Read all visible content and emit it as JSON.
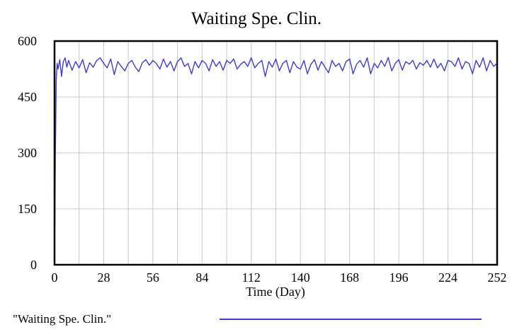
{
  "chart_data": {
    "type": "line",
    "title": "Waiting Spe. Clin.",
    "xlabel": "Time (Day)",
    "ylabel": "",
    "xlim": [
      0,
      252
    ],
    "ylim": [
      0,
      600
    ],
    "x_ticks": [
      0,
      28,
      56,
      84,
      112,
      140,
      168,
      196,
      224,
      252
    ],
    "y_ticks": [
      0,
      150,
      300,
      450,
      600
    ],
    "x_tick_labels": [
      "0",
      "28",
      "56",
      "84",
      "112",
      "140",
      "168",
      "196",
      "224",
      "252"
    ],
    "y_tick_labels": [
      "0",
      "150",
      "300",
      "450",
      "600"
    ],
    "grid": true,
    "legend_position": "bottom",
    "series": [
      {
        "name": "\"Waiting Spe. Clin.\"",
        "color": "#3b3bd4",
        "x": [
          0,
          0.5,
          1,
          1.5,
          2,
          3,
          4,
          5,
          6,
          7,
          8,
          10,
          12,
          14,
          16,
          18,
          20,
          22,
          24,
          26,
          28,
          30,
          32,
          34,
          36,
          38,
          40,
          42,
          44,
          46,
          48,
          50,
          52,
          54,
          56,
          58,
          60,
          62,
          64,
          66,
          68,
          70,
          72,
          74,
          76,
          78,
          80,
          82,
          84,
          86,
          88,
          90,
          92,
          94,
          96,
          98,
          100,
          102,
          104,
          106,
          108,
          110,
          112,
          114,
          116,
          118,
          120,
          122,
          124,
          126,
          128,
          130,
          132,
          134,
          136,
          138,
          140,
          142,
          144,
          146,
          148,
          150,
          152,
          154,
          156,
          158,
          160,
          162,
          164,
          166,
          168,
          170,
          172,
          174,
          176,
          178,
          180,
          182,
          184,
          186,
          188,
          190,
          192,
          194,
          196,
          198,
          200,
          202,
          204,
          206,
          208,
          210,
          212,
          214,
          216,
          218,
          220,
          222,
          224,
          226,
          228,
          230,
          232,
          234,
          236,
          238,
          240,
          242,
          244,
          246,
          248,
          250,
          252
        ],
        "values": [
          0,
          300,
          500,
          540,
          525,
          550,
          505,
          545,
          555,
          530,
          548,
          522,
          545,
          528,
          550,
          515,
          542,
          530,
          548,
          555,
          540,
          528,
          552,
          510,
          545,
          532,
          520,
          540,
          548,
          530,
          518,
          542,
          550,
          535,
          548,
          540,
          525,
          552,
          530,
          545,
          520,
          545,
          555,
          532,
          540,
          512,
          545,
          528,
          548,
          540,
          520,
          550,
          532,
          545,
          522,
          548,
          540,
          552,
          525,
          538,
          545,
          532,
          555,
          528,
          540,
          548,
          505,
          545,
          530,
          552,
          520,
          540,
          548,
          515,
          545,
          530,
          525,
          548,
          512,
          538,
          550,
          522,
          545,
          530,
          515,
          548,
          532,
          540,
          520,
          545,
          552,
          512,
          538,
          548,
          530,
          555,
          512,
          540,
          528,
          548,
          532,
          556,
          520,
          540,
          550,
          522,
          545,
          538,
          548,
          525,
          542,
          535,
          548,
          530,
          552,
          528,
          540,
          520,
          548,
          545,
          532,
          555,
          525,
          545,
          540,
          512,
          548,
          530,
          555,
          520,
          548,
          532,
          540
        ]
      }
    ]
  }
}
